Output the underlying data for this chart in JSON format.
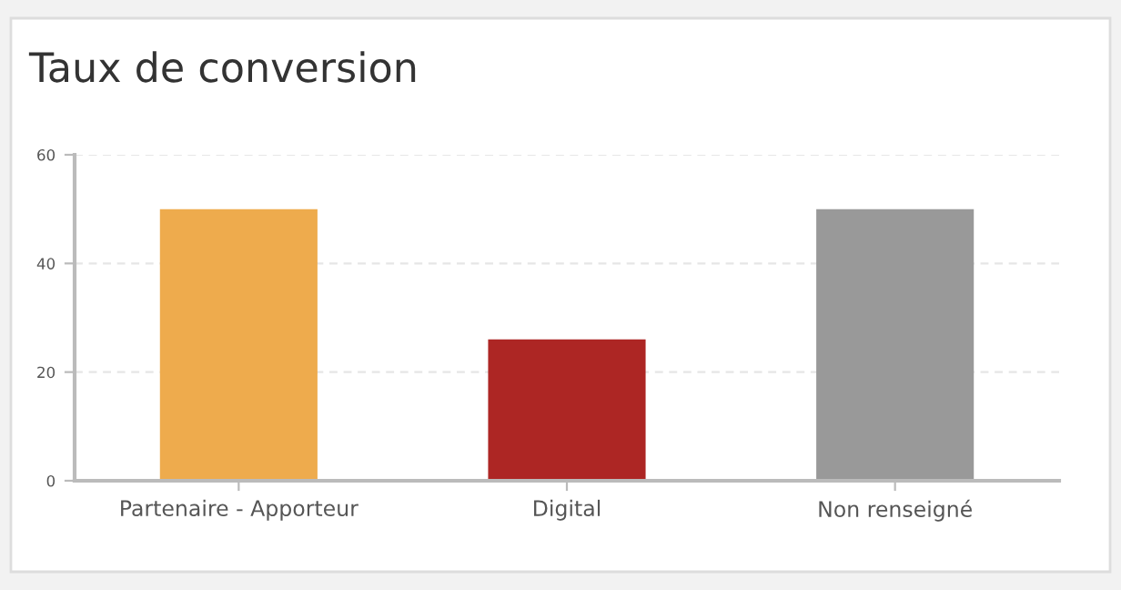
{
  "chart_data": {
    "type": "bar",
    "title": "Taux de conversion",
    "categories": [
      "Partenaire - Apporteur",
      "Digital",
      "Non renseigné"
    ],
    "values": [
      50,
      26,
      50
    ],
    "colors": [
      "#eeab4d",
      "#ad2624",
      "#999999"
    ],
    "ylim": [
      0,
      60
    ],
    "yticks": [
      0,
      20,
      40,
      60
    ],
    "grid": "y"
  }
}
